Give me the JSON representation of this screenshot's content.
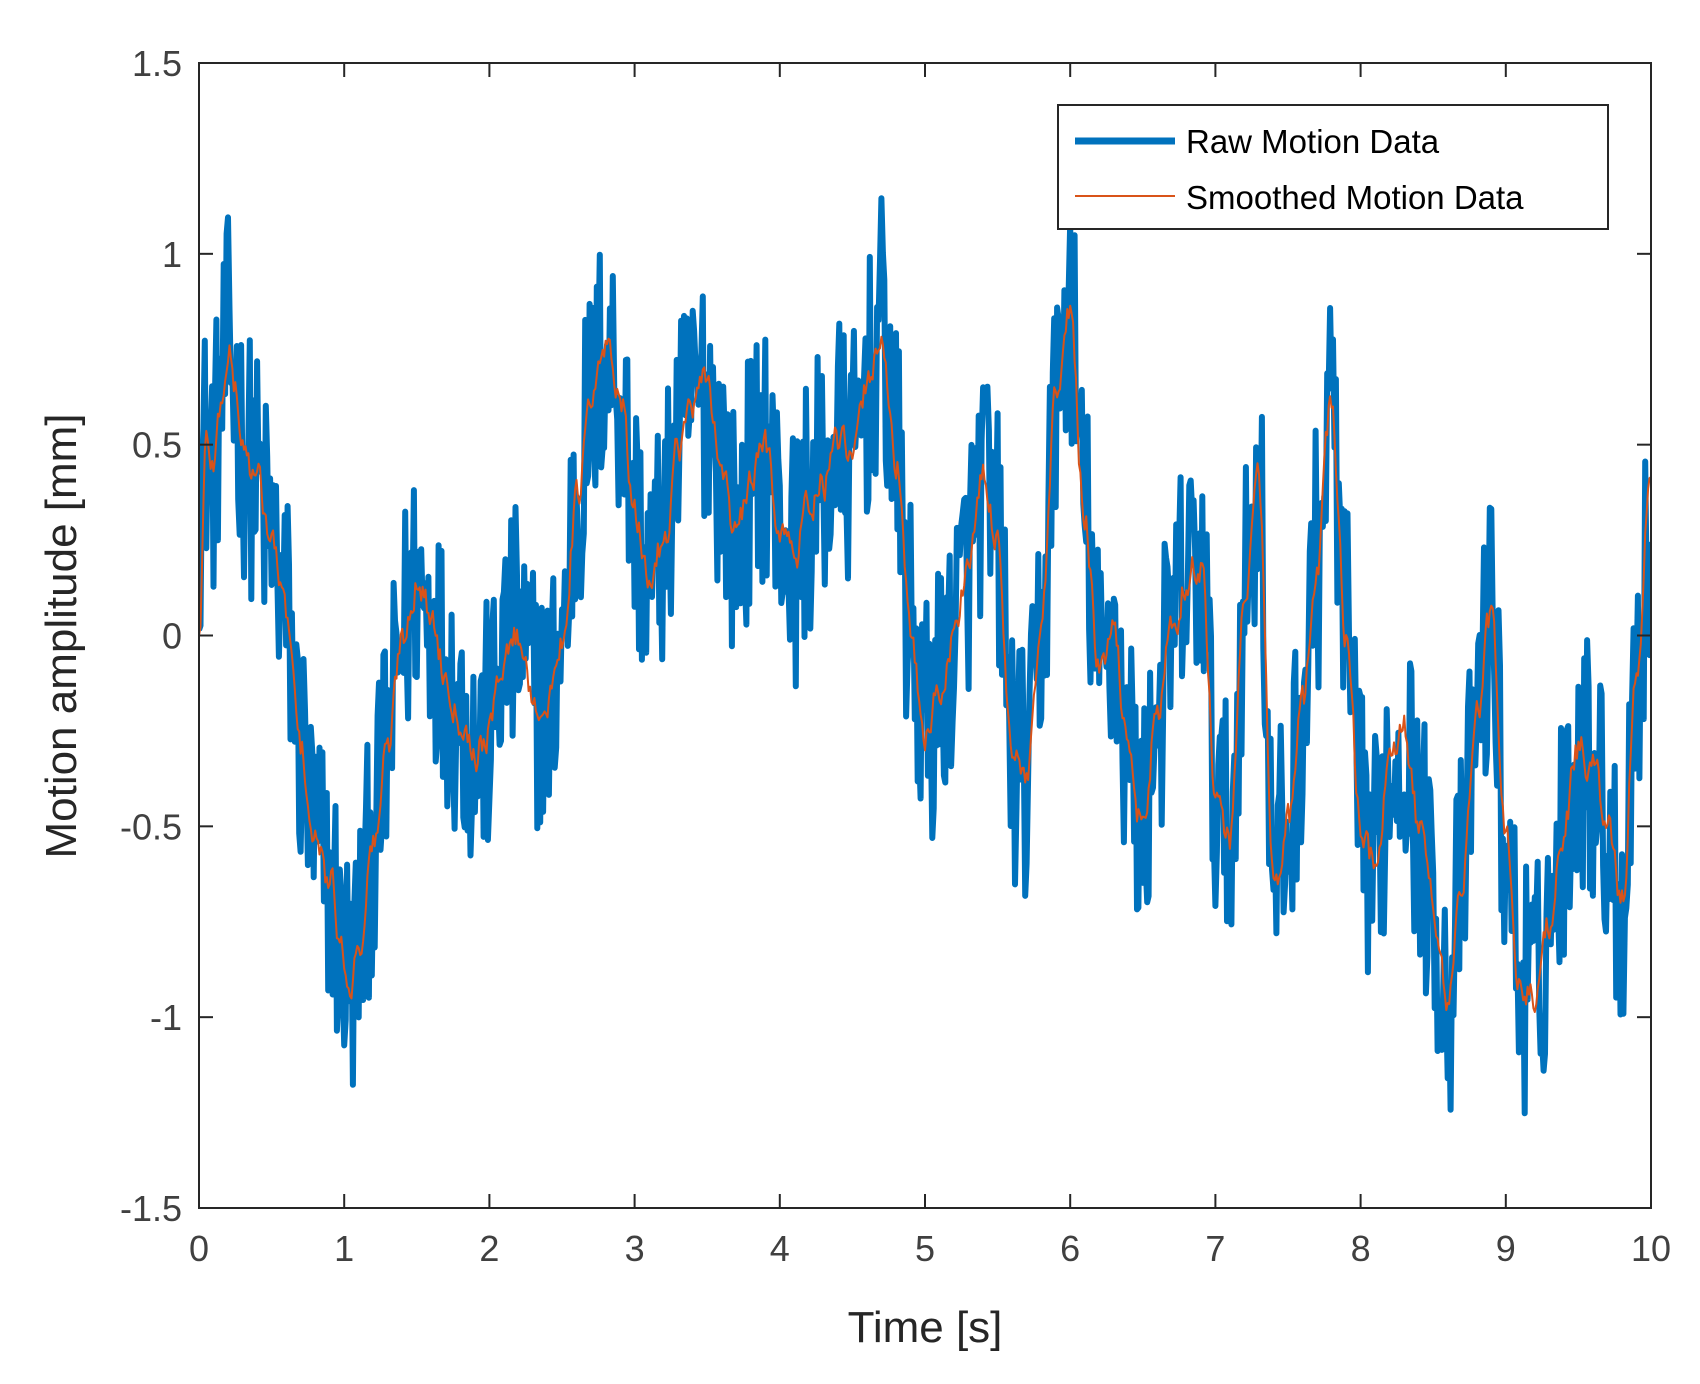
{
  "chart_data": {
    "type": "line",
    "title": "",
    "xlabel": "Time [s]",
    "ylabel": "Motion amplitude [mm]",
    "xlim": [
      0,
      10
    ],
    "ylim": [
      -1.5,
      1.5
    ],
    "xticks": [
      0,
      1,
      2,
      3,
      4,
      5,
      6,
      7,
      8,
      9,
      10
    ],
    "yticks": [
      -1.5,
      -1,
      -0.5,
      0,
      0.5,
      1,
      1.5
    ],
    "xtick_labels": [
      "0",
      "1",
      "2",
      "3",
      "4",
      "5",
      "6",
      "7",
      "8",
      "9",
      "10"
    ],
    "ytick_labels": [
      "-1.5",
      "-1",
      "-0.5",
      "0",
      "0.5",
      "1",
      "1.5"
    ],
    "grid": false,
    "legend_position": "top-right",
    "series": [
      {
        "name": "Raw Motion Data",
        "color": "#0072BD",
        "noise_amplitude": 0.35,
        "samples": 1000,
        "x": [
          0,
          0.05,
          0.1,
          0.15,
          0.2,
          0.25,
          0.3,
          0.4,
          0.5,
          0.6,
          0.7,
          0.8,
          0.9,
          1.0,
          1.05,
          1.1,
          1.2,
          1.3,
          1.4,
          1.5,
          1.6,
          1.7,
          1.8,
          1.9,
          2.0,
          2.1,
          2.2,
          2.3,
          2.4,
          2.5,
          2.6,
          2.7,
          2.8,
          2.9,
          3.0,
          3.1,
          3.2,
          3.3,
          3.4,
          3.5,
          3.6,
          3.7,
          3.8,
          3.9,
          4.0,
          4.1,
          4.2,
          4.3,
          4.4,
          4.5,
          4.6,
          4.7,
          4.8,
          4.9,
          5.0,
          5.1,
          5.2,
          5.3,
          5.4,
          5.5,
          5.6,
          5.7,
          5.8,
          5.9,
          6.0,
          6.1,
          6.2,
          6.3,
          6.4,
          6.5,
          6.6,
          6.7,
          6.8,
          6.9,
          7.0,
          7.1,
          7.2,
          7.3,
          7.4,
          7.5,
          7.6,
          7.7,
          7.8,
          7.9,
          8.0,
          8.1,
          8.2,
          8.3,
          8.4,
          8.5,
          8.6,
          8.7,
          8.8,
          8.9,
          9.0,
          9.1,
          9.2,
          9.3,
          9.4,
          9.5,
          9.6,
          9.7,
          9.8,
          9.9,
          10.0
        ],
        "y": [
          0.35,
          0.5,
          0.45,
          0.6,
          0.75,
          0.65,
          0.5,
          0.4,
          0.25,
          0.05,
          -0.3,
          -0.55,
          -0.65,
          -0.85,
          -0.9,
          -0.8,
          -0.55,
          -0.3,
          0.0,
          0.15,
          0.05,
          -0.1,
          -0.2,
          -0.3,
          -0.25,
          -0.05,
          0.0,
          -0.15,
          -0.2,
          0.0,
          0.35,
          0.6,
          0.75,
          0.65,
          0.3,
          0.15,
          0.25,
          0.5,
          0.6,
          0.65,
          0.45,
          0.25,
          0.4,
          0.5,
          0.3,
          0.2,
          0.35,
          0.4,
          0.5,
          0.45,
          0.65,
          0.8,
          0.45,
          0.0,
          -0.25,
          -0.15,
          0.0,
          0.2,
          0.4,
          0.25,
          -0.3,
          -0.4,
          0.0,
          0.6,
          0.85,
          0.3,
          -0.1,
          0.0,
          -0.3,
          -0.5,
          -0.2,
          0.0,
          0.15,
          0.2,
          -0.4,
          -0.55,
          0.1,
          0.4,
          -0.65,
          -0.5,
          -0.2,
          0.2,
          0.6,
          0.0,
          -0.5,
          -0.6,
          -0.35,
          -0.25,
          -0.5,
          -0.7,
          -0.95,
          -0.65,
          -0.2,
          0.05,
          -0.55,
          -0.9,
          -0.95,
          -0.75,
          -0.5,
          -0.3,
          -0.35,
          -0.5,
          -0.7,
          -0.1,
          0.25
        ]
      },
      {
        "name": "Smoothed Motion Data",
        "color": "#D95319",
        "noise_amplitude": 0.1,
        "samples": 1000,
        "x": [
          0,
          0.05,
          0.1,
          0.15,
          0.2,
          0.25,
          0.3,
          0.4,
          0.5,
          0.6,
          0.7,
          0.8,
          0.9,
          1.0,
          1.05,
          1.1,
          1.2,
          1.3,
          1.4,
          1.5,
          1.6,
          1.7,
          1.8,
          1.9,
          2.0,
          2.1,
          2.2,
          2.3,
          2.4,
          2.5,
          2.6,
          2.7,
          2.8,
          2.9,
          3.0,
          3.1,
          3.2,
          3.3,
          3.4,
          3.5,
          3.6,
          3.7,
          3.8,
          3.9,
          4.0,
          4.1,
          4.2,
          4.3,
          4.4,
          4.5,
          4.6,
          4.7,
          4.8,
          4.9,
          5.0,
          5.1,
          5.2,
          5.3,
          5.4,
          5.5,
          5.6,
          5.7,
          5.8,
          5.9,
          6.0,
          6.1,
          6.2,
          6.3,
          6.4,
          6.5,
          6.6,
          6.7,
          6.8,
          6.9,
          7.0,
          7.1,
          7.2,
          7.3,
          7.4,
          7.5,
          7.6,
          7.7,
          7.8,
          7.9,
          8.0,
          8.1,
          8.2,
          8.3,
          8.4,
          8.5,
          8.6,
          8.7,
          8.8,
          8.9,
          9.0,
          9.1,
          9.2,
          9.3,
          9.4,
          9.5,
          9.6,
          9.7,
          9.8,
          9.9,
          10.0
        ],
        "y": [
          0.0,
          0.5,
          0.45,
          0.6,
          0.75,
          0.65,
          0.5,
          0.4,
          0.25,
          0.05,
          -0.3,
          -0.55,
          -0.65,
          -0.85,
          -0.9,
          -0.8,
          -0.55,
          -0.3,
          0.0,
          0.15,
          0.05,
          -0.1,
          -0.2,
          -0.3,
          -0.25,
          -0.05,
          0.0,
          -0.15,
          -0.2,
          0.0,
          0.35,
          0.6,
          0.75,
          0.65,
          0.3,
          0.15,
          0.25,
          0.5,
          0.6,
          0.65,
          0.45,
          0.25,
          0.4,
          0.5,
          0.3,
          0.2,
          0.35,
          0.4,
          0.5,
          0.45,
          0.65,
          0.8,
          0.45,
          0.0,
          -0.25,
          -0.15,
          0.0,
          0.2,
          0.4,
          0.25,
          -0.3,
          -0.4,
          0.0,
          0.6,
          0.85,
          0.3,
          -0.1,
          0.0,
          -0.3,
          -0.5,
          -0.2,
          0.0,
          0.15,
          0.2,
          -0.4,
          -0.55,
          0.1,
          0.4,
          -0.65,
          -0.5,
          -0.2,
          0.2,
          0.6,
          0.0,
          -0.5,
          -0.6,
          -0.35,
          -0.25,
          -0.5,
          -0.7,
          -0.95,
          -0.65,
          -0.2,
          0.05,
          -0.55,
          -0.9,
          -0.95,
          -0.75,
          -0.5,
          -0.3,
          -0.35,
          -0.5,
          -0.7,
          -0.1,
          0.4
        ]
      }
    ]
  }
}
